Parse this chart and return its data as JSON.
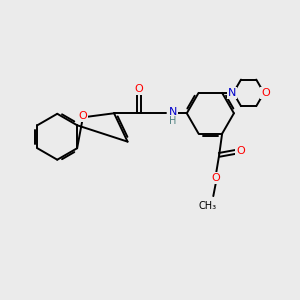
{
  "bg_color": "#ebebeb",
  "bond_color": "#000000",
  "oxygen_color": "#ff0000",
  "nitrogen_color": "#0000cc",
  "hydrogen_color": "#4d8080",
  "line_width": 1.4,
  "dbo": 0.065,
  "fig_width": 3.0,
  "fig_height": 3.0,
  "xlim": [
    0,
    10
  ],
  "ylim": [
    0,
    10
  ]
}
